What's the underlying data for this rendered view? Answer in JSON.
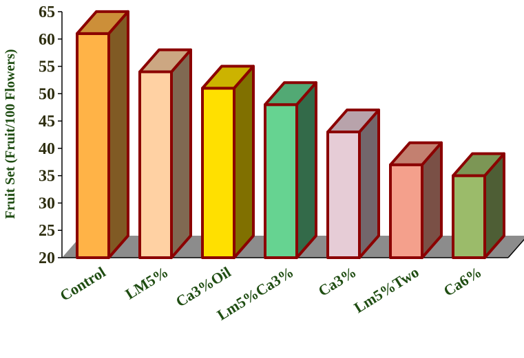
{
  "chart_data": {
    "type": "bar",
    "title": "",
    "xlabel": "",
    "ylabel": "Fruit Set (Fruit/100 Flowers)",
    "categories": [
      "Control",
      "LM5%",
      "Ca3%Oil",
      "Lm5%Ca3%",
      "Ca3%",
      "Lm5%Two",
      "Ca6%"
    ],
    "values": [
      61,
      54,
      51,
      48,
      43,
      37,
      35
    ],
    "ylim": [
      20,
      65
    ],
    "yticks": [
      20,
      25,
      30,
      35,
      40,
      45,
      50,
      55,
      60,
      65
    ],
    "grid": false,
    "legend": "none",
    "colors": {
      "bars": [
        "#FFB347",
        "#FFD1A3",
        "#FFE000",
        "#66D391",
        "#E6CCD6",
        "#F4A08C",
        "#9BBB6A"
      ],
      "outline": "#8B0000",
      "floor": "#8C8C8C",
      "axis": "#000000"
    }
  }
}
